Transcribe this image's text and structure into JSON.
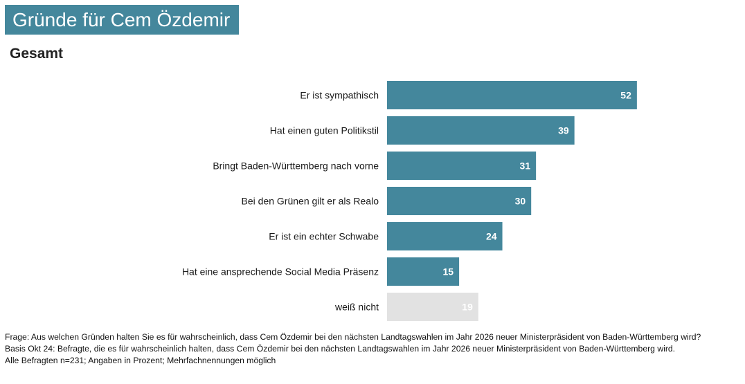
{
  "colors": {
    "primary": "#44879c",
    "neutral": "#e2e2e2",
    "text_on_bar": "#ffffff"
  },
  "chart_data": {
    "type": "bar",
    "orientation": "horizontal",
    "title": "Gründe für Cem Özdemir",
    "subtitle": "Gesamt",
    "categories": [
      "Er ist sympathisch",
      "Hat einen guten Politikstil",
      "Bringt Baden-Württemberg nach vorne",
      "Bei den Grünen gilt er als Realo",
      "Er ist ein echter Schwabe",
      "Hat eine ansprechende Social Media Präsenz",
      "weiß nicht"
    ],
    "values": [
      52,
      39,
      31,
      30,
      24,
      15,
      19
    ],
    "highlight": [
      true,
      true,
      true,
      true,
      true,
      true,
      false
    ],
    "xlim": [
      0,
      70
    ],
    "grid": false
  },
  "footnotes": [
    "Frage: Aus welchen Gründen halten Sie es für wahrscheinlich, dass Cem Özdemir bei den nächsten Landtagswahlen im Jahr 2026 neuer Ministerpräsident von Baden-Württemberg wird?",
    "Basis Okt 24: Befragte, die es für wahrscheinlich halten, dass Cem Özdemir bei den nächsten Landtagswahlen im Jahr 2026 neuer Ministerpräsident von Baden-Württemberg wird.",
    "Alle Befragten n=231; Angaben in Prozent; Mehrfachnennungen möglich"
  ]
}
